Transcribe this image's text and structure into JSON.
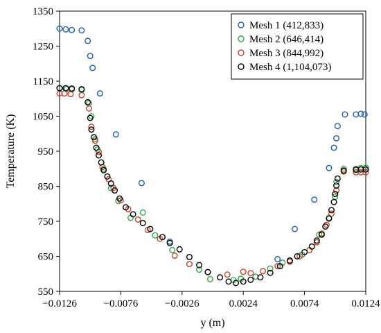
{
  "chart_data": {
    "type": "scatter",
    "xlabel": "y (m)",
    "ylabel": "Temperature (K)",
    "xlim": [
      -0.0126,
      0.0124
    ],
    "ylim": [
      550,
      1350
    ],
    "xticks": [
      -0.0126,
      -0.0076,
      -0.0026,
      0.0024,
      0.0074,
      0.0124
    ],
    "xtick_labels": [
      "−0.0126",
      "−0.0076",
      "−0.0026",
      "0.0024",
      "0.0074",
      "0.0124"
    ],
    "yticks": [
      550,
      650,
      750,
      850,
      950,
      1050,
      1150,
      1250,
      1350
    ],
    "ytick_labels": [
      "550",
      "650",
      "750",
      "850",
      "950",
      "1050",
      "1150",
      "1250",
      "1350"
    ],
    "grid": false,
    "legend_position": "top-right",
    "series": [
      {
        "name": "Mesh 1 (412,833)",
        "color": "#1f5fb4",
        "points": [
          [
            -0.0126,
            1300
          ],
          [
            -0.0121,
            1298
          ],
          [
            -0.0116,
            1296
          ],
          [
            -0.0108,
            1295
          ],
          [
            -0.0103,
            1265
          ],
          [
            -0.0101,
            1222
          ],
          [
            -0.0099,
            1188
          ],
          [
            -0.0093,
            1115
          ],
          [
            -0.008,
            998
          ],
          [
            -0.0059,
            859
          ],
          [
            -0.0036,
            692
          ],
          [
            0.0052,
            642
          ],
          [
            0.0066,
            728
          ],
          [
            0.0082,
            812
          ],
          [
            0.0094,
            902
          ],
          [
            0.0098,
            960
          ],
          [
            0.01,
            987
          ],
          [
            0.0101,
            1022
          ],
          [
            0.0107,
            1055
          ],
          [
            0.0116,
            1055
          ],
          [
            0.012,
            1057
          ],
          [
            0.0123,
            1055
          ]
        ]
      },
      {
        "name": "Mesh 2 (646,414)",
        "color": "#2ea84a",
        "points": [
          [
            -0.0126,
            1130
          ],
          [
            -0.012,
            1128
          ],
          [
            -0.0116,
            1127
          ],
          [
            -0.0108,
            1125
          ],
          [
            -0.0102,
            1087
          ],
          [
            -0.01,
            1050
          ],
          [
            -0.0097,
            985
          ],
          [
            -0.0095,
            955
          ],
          [
            -0.009,
            900
          ],
          [
            -0.0084,
            845
          ],
          [
            -0.0078,
            808
          ],
          [
            -0.0068,
            760
          ],
          [
            -0.0058,
            775
          ],
          [
            -0.0048,
            710
          ],
          [
            -0.0034,
            668
          ],
          [
            -0.0012,
            612
          ],
          [
            -0.0003,
            585
          ],
          [
            0.0016,
            582
          ],
          [
            0.0022,
            586
          ],
          [
            0.0034,
            592
          ],
          [
            0.0046,
            615
          ],
          [
            0.0056,
            632
          ],
          [
            0.0072,
            655
          ],
          [
            0.0086,
            712
          ],
          [
            0.0094,
            760
          ],
          [
            0.0099,
            820
          ],
          [
            0.01,
            862
          ],
          [
            0.0106,
            900
          ],
          [
            0.0116,
            900
          ],
          [
            0.012,
            902
          ],
          [
            0.0124,
            903
          ]
        ]
      },
      {
        "name": "Mesh 3 (844,992)",
        "color": "#c8412a",
        "points": [
          [
            -0.0126,
            1115
          ],
          [
            -0.0122,
            1115
          ],
          [
            -0.0117,
            1113
          ],
          [
            -0.0108,
            1110
          ],
          [
            -0.0102,
            1072
          ],
          [
            -0.01,
            1020
          ],
          [
            -0.0097,
            980
          ],
          [
            -0.0094,
            948
          ],
          [
            -0.0091,
            905
          ],
          [
            -0.0086,
            870
          ],
          [
            -0.0082,
            845
          ],
          [
            -0.0076,
            810
          ],
          [
            -0.007,
            785
          ],
          [
            -0.0062,
            755
          ],
          [
            -0.0054,
            725
          ],
          [
            -0.0044,
            700
          ],
          [
            -0.0032,
            652
          ],
          [
            -0.002,
            628
          ],
          [
            -0.0005,
            605
          ],
          [
            0.0011,
            598
          ],
          [
            0.0024,
            606
          ],
          [
            0.003,
            602
          ],
          [
            0.004,
            608
          ],
          [
            0.0052,
            622
          ],
          [
            0.0062,
            635
          ],
          [
            0.007,
            650
          ],
          [
            0.0078,
            668
          ],
          [
            0.0084,
            690
          ],
          [
            0.0088,
            715
          ],
          [
            0.0092,
            740
          ],
          [
            0.0096,
            772
          ],
          [
            0.01,
            838
          ],
          [
            0.0106,
            892
          ],
          [
            0.0116,
            890
          ],
          [
            0.012,
            890
          ],
          [
            0.0124,
            890
          ]
        ]
      },
      {
        "name": "Mesh 4 (1,104,073)",
        "color": "#000000",
        "points": [
          [
            -0.0126,
            1130
          ],
          [
            -0.0121,
            1130
          ],
          [
            -0.0116,
            1129
          ],
          [
            -0.0108,
            1127
          ],
          [
            -0.0103,
            1090
          ],
          [
            -0.0101,
            1045
          ],
          [
            -0.01,
            1012
          ],
          [
            -0.0098,
            990
          ],
          [
            -0.0096,
            960
          ],
          [
            -0.0094,
            938
          ],
          [
            -0.0092,
            918
          ],
          [
            -0.009,
            896
          ],
          [
            -0.0087,
            878
          ],
          [
            -0.0084,
            858
          ],
          [
            -0.0081,
            838
          ],
          [
            -0.0077,
            815
          ],
          [
            -0.0072,
            790
          ],
          [
            -0.0066,
            770
          ],
          [
            -0.0058,
            745
          ],
          [
            -0.0052,
            728
          ],
          [
            -0.0042,
            705
          ],
          [
            -0.0036,
            688
          ],
          [
            -0.0028,
            670
          ],
          [
            -0.002,
            648
          ],
          [
            -0.0012,
            625
          ],
          [
            -0.0005,
            605
          ],
          [
            0.0005,
            590
          ],
          [
            0.0012,
            578
          ],
          [
            0.0018,
            574
          ],
          [
            0.0024,
            578
          ],
          [
            0.003,
            583
          ],
          [
            0.0038,
            590
          ],
          [
            0.0046,
            603
          ],
          [
            0.0054,
            622
          ],
          [
            0.0062,
            638
          ],
          [
            0.0068,
            650
          ],
          [
            0.0074,
            662
          ],
          [
            0.008,
            678
          ],
          [
            0.0084,
            695
          ],
          [
            0.0088,
            712
          ],
          [
            0.0091,
            735
          ],
          [
            0.0094,
            758
          ],
          [
            0.0096,
            782
          ],
          [
            0.0098,
            805
          ],
          [
            0.0099,
            828
          ],
          [
            0.01,
            852
          ],
          [
            0.0101,
            872
          ],
          [
            0.0106,
            895
          ],
          [
            0.0116,
            897
          ],
          [
            0.012,
            898
          ],
          [
            0.0124,
            898
          ]
        ]
      }
    ]
  }
}
